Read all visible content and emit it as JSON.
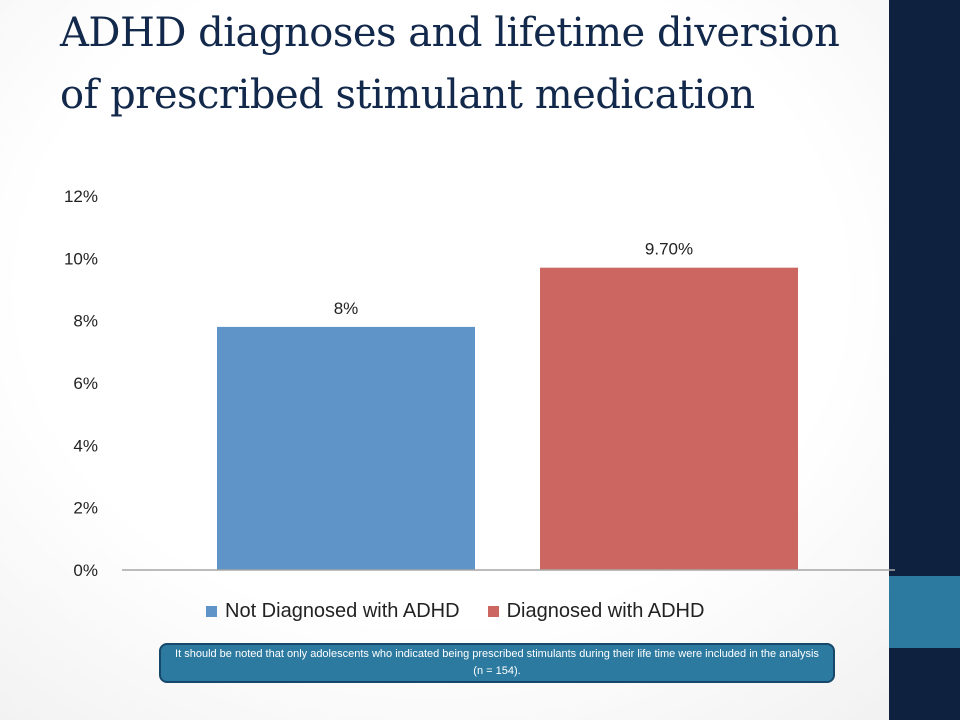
{
  "slide": {
    "title": "ADHD diagnoses and lifetime diversion of prescribed stimulant medication",
    "note": "It should be noted that only adolescents who indicated being prescribed stimulants during their life time were included in the analysis (n = 154).",
    "colors": {
      "band": "#0e2240",
      "accent": "#2d7aa0",
      "title": "#13294b"
    }
  },
  "chart_data": {
    "type": "bar",
    "title": "",
    "xlabel": "",
    "ylabel": "",
    "ylim": [
      0,
      12
    ],
    "yticks": [
      "0%",
      "2%",
      "4%",
      "6%",
      "8%",
      "10%",
      "12%"
    ],
    "grid": false,
    "legend_position": "bottom",
    "series": [
      {
        "name": "Not Diagnosed with ADHD",
        "value": 7.8,
        "label": "8%",
        "color": "#5f94c8"
      },
      {
        "name": "Diagnosed with ADHD",
        "value": 9.7,
        "label": "9.70%",
        "color": "#cc6660"
      }
    ]
  }
}
